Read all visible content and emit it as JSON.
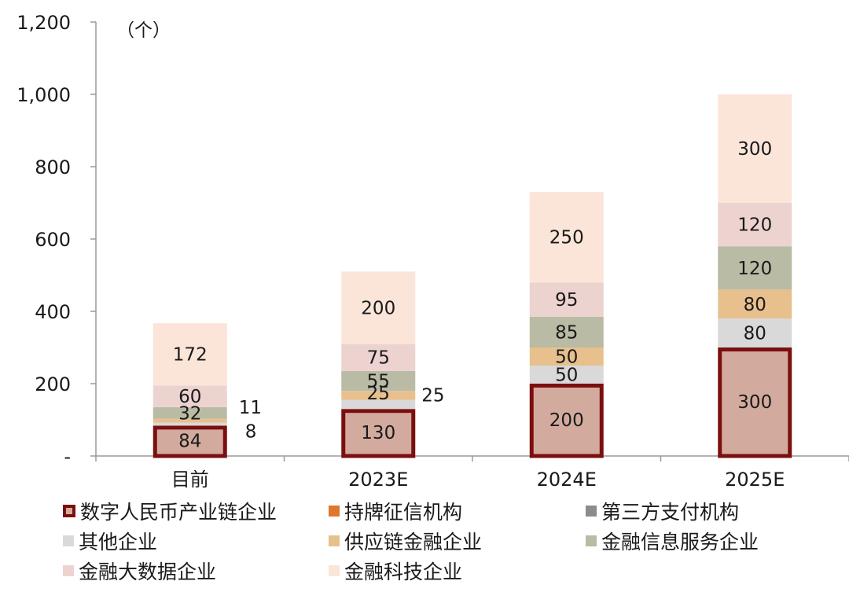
{
  "chart_data": {
    "type": "bar",
    "stacked": true,
    "unit_label": "（个）",
    "categories": [
      "目前",
      "2023E",
      "2024E",
      "2025E"
    ],
    "ylim": [
      0,
      1200
    ],
    "yticks": [
      {
        "value": 0,
        "label": "-"
      },
      {
        "value": 200,
        "label": "200"
      },
      {
        "value": 400,
        "label": "400"
      },
      {
        "value": 600,
        "label": "600"
      },
      {
        "value": 800,
        "label": "800"
      },
      {
        "value": 1000,
        "label": "1,000"
      },
      {
        "value": 1200,
        "label": "1,200"
      }
    ],
    "series": [
      {
        "name": "数字人民币产业链企业",
        "color": "#d3ab9e",
        "outline": "#7b0f0f",
        "values": [
          84,
          130,
          200,
          300
        ]
      },
      {
        "name": "持牌征信机构",
        "color": "#e0772e",
        "values": [
          0,
          0,
          0,
          0
        ]
      },
      {
        "name": "第三方支付机构",
        "color": "#8c8c8c",
        "values": [
          0,
          0,
          0,
          0
        ]
      },
      {
        "name": "其他企业",
        "color": "#d9d9d9",
        "values": [
          8,
          25,
          50,
          80
        ]
      },
      {
        "name": "供应链金融企业",
        "color": "#e8c08e",
        "values": [
          11,
          25,
          50,
          80
        ]
      },
      {
        "name": "金融信息服务企业",
        "color": "#b9bba4",
        "values": [
          32,
          55,
          85,
          120
        ]
      },
      {
        "name": "金融大数据企业",
        "color": "#ecd3d0",
        "values": [
          60,
          75,
          95,
          120
        ]
      },
      {
        "name": "金融科技企业",
        "color": "#fbe5d9",
        "values": [
          172,
          200,
          250,
          300
        ]
      }
    ],
    "legend_position": "bottom"
  }
}
